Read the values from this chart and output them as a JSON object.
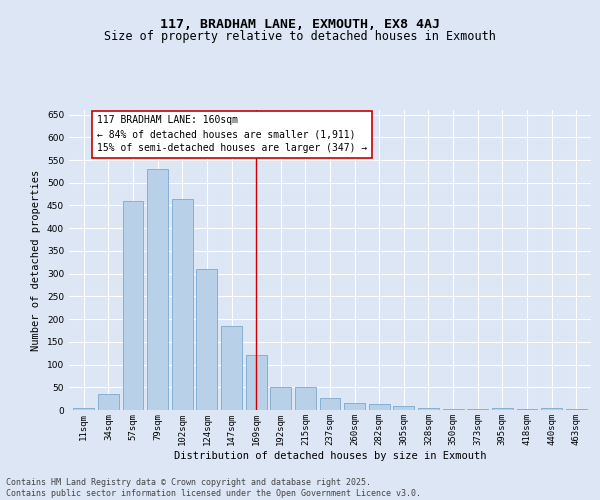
{
  "title": "117, BRADHAM LANE, EXMOUTH, EX8 4AJ",
  "subtitle": "Size of property relative to detached houses in Exmouth",
  "xlabel": "Distribution of detached houses by size in Exmouth",
  "ylabel": "Number of detached properties",
  "categories": [
    "11sqm",
    "34sqm",
    "57sqm",
    "79sqm",
    "102sqm",
    "124sqm",
    "147sqm",
    "169sqm",
    "192sqm",
    "215sqm",
    "237sqm",
    "260sqm",
    "282sqm",
    "305sqm",
    "328sqm",
    "350sqm",
    "373sqm",
    "395sqm",
    "418sqm",
    "440sqm",
    "463sqm"
  ],
  "values": [
    5,
    35,
    460,
    530,
    465,
    310,
    185,
    120,
    50,
    50,
    27,
    15,
    13,
    8,
    4,
    3,
    2,
    5,
    2,
    4,
    2
  ],
  "bar_color": "#b8d0e8",
  "bar_edge_color": "#7aaad0",
  "property_line_index": 7,
  "property_label": "117 BRADHAM LANE: 160sqm",
  "annotation_line1": "← 84% of detached houses are smaller (1,911)",
  "annotation_line2": "15% of semi-detached houses are larger (347) →",
  "annotation_box_facecolor": "#ffffff",
  "annotation_box_edgecolor": "#cc0000",
  "vline_color": "#cc0000",
  "ylim": [
    0,
    660
  ],
  "yticks": [
    0,
    50,
    100,
    150,
    200,
    250,
    300,
    350,
    400,
    450,
    500,
    550,
    600,
    650
  ],
  "background_color": "#dce6f5",
  "grid_color": "#ffffff",
  "footer_line1": "Contains HM Land Registry data © Crown copyright and database right 2025.",
  "footer_line2": "Contains public sector information licensed under the Open Government Licence v3.0.",
  "title_fontsize": 9.5,
  "subtitle_fontsize": 8.5,
  "axis_label_fontsize": 7.5,
  "tick_fontsize": 6.5,
  "annotation_fontsize": 7,
  "footer_fontsize": 6
}
